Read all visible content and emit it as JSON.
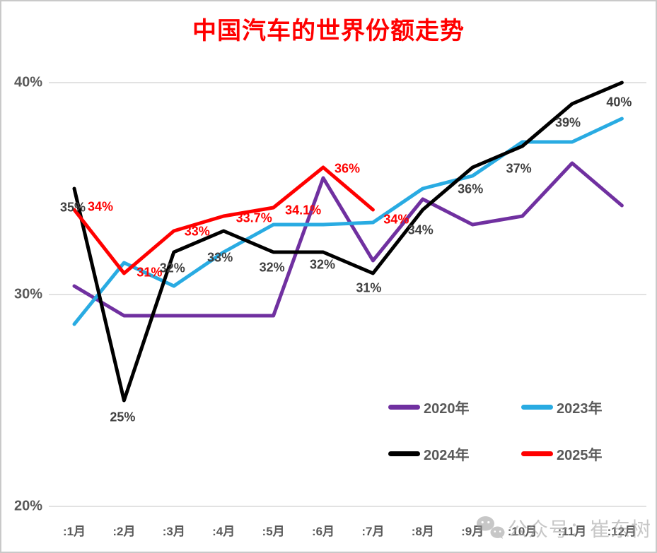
{
  "title": "中国汽车的世界份额走势",
  "watermark": {
    "icon": "wechat-icon",
    "text": "公众号：崔东树"
  },
  "colors": {
    "title": "#FF0000",
    "axis_text": "#595959",
    "gridline": "#D9D9D9",
    "dark_label": "#404040"
  },
  "chart_data": {
    "type": "line",
    "title": "中国汽车的世界份额走势",
    "categories": [
      ":1月",
      ":2月",
      ":3月",
      ":4月",
      ":5月",
      ":6月",
      ":7月",
      ":8月",
      ":9月",
      ":10月",
      ":11月",
      ":12月"
    ],
    "xlabel": "",
    "ylabel": "",
    "ylim": [
      20,
      41
    ],
    "yticks": [
      {
        "label": "40%",
        "value": 40
      },
      {
        "label": "30%",
        "value": 30
      },
      {
        "label": "20%",
        "value": 20
      }
    ],
    "grid": "horizontal",
    "legend_position": "inside-bottom-right",
    "series": [
      {
        "name": "2020年",
        "color": "#7030A0",
        "values": [
          30.4,
          29,
          29,
          29,
          29,
          35.5,
          31.6,
          34.5,
          33.3,
          33.7,
          36.2,
          34.2
        ],
        "labels": null
      },
      {
        "name": "2023年",
        "color": "#29ABE2",
        "values": [
          28.6,
          31.5,
          30.4,
          32,
          33.3,
          33.3,
          33.4,
          35,
          35.6,
          37.2,
          37.2,
          38.3
        ],
        "labels": null
      },
      {
        "name": "2024年",
        "color": "#000000",
        "label_color": "#404040",
        "values": [
          35,
          25,
          32,
          33,
          32,
          32,
          31,
          34,
          36,
          37,
          39,
          40
        ],
        "labels": [
          "35%",
          "25%",
          "32%",
          "33%",
          "32%",
          "32%",
          "31%",
          "34%",
          "36%",
          "37%",
          "39%",
          "40%"
        ]
      },
      {
        "name": "2025年",
        "color": "#FF0000",
        "label_color": "#FF0000",
        "values": [
          34,
          31,
          33,
          33.7,
          34.1,
          36,
          34
        ],
        "labels": [
          "34%",
          "31%",
          "33%",
          "33.7%",
          "34.1%",
          "36%",
          "34%"
        ]
      }
    ]
  }
}
